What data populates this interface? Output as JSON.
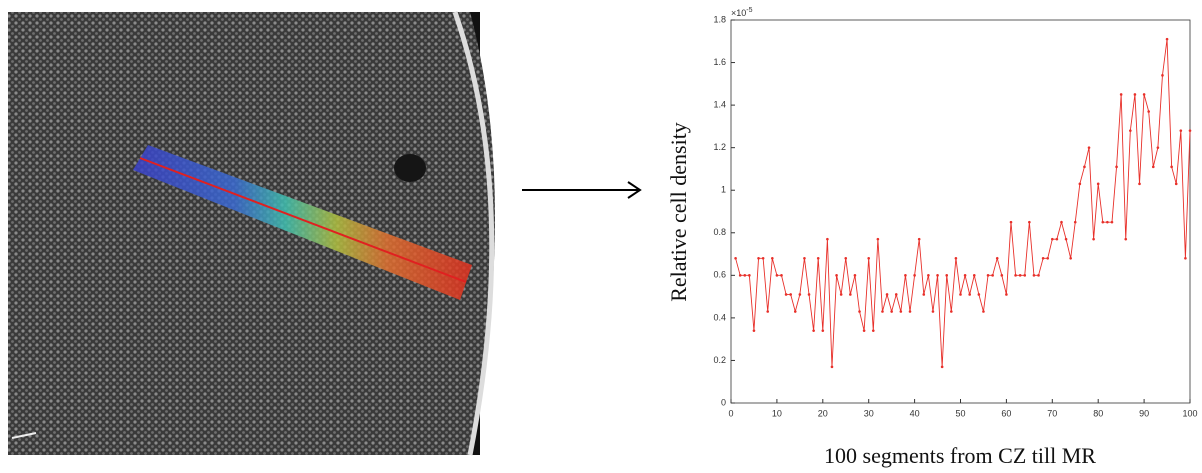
{
  "chart_data": {
    "type": "line",
    "y_label": "Relative cell density",
    "x_label": "100 segments from CZ till MR",
    "multiplier": {
      "base": "×10",
      "exponent": "-5"
    },
    "x": [
      1,
      2,
      3,
      4,
      5,
      6,
      7,
      8,
      9,
      10,
      11,
      12,
      13,
      14,
      15,
      16,
      17,
      18,
      19,
      20,
      21,
      22,
      23,
      24,
      25,
      26,
      27,
      28,
      29,
      30,
      31,
      32,
      33,
      34,
      35,
      36,
      37,
      38,
      39,
      40,
      41,
      42,
      43,
      44,
      45,
      46,
      47,
      48,
      49,
      50,
      51,
      52,
      53,
      54,
      55,
      56,
      57,
      58,
      59,
      60,
      61,
      62,
      63,
      64,
      65,
      66,
      67,
      68,
      69,
      70,
      71,
      72,
      73,
      74,
      75,
      76,
      77,
      78,
      79,
      80,
      81,
      82,
      83,
      84,
      85,
      86,
      87,
      88,
      89,
      90,
      91,
      92,
      93,
      94,
      95,
      96,
      97,
      98,
      99,
      100
    ],
    "series": [
      {
        "color": "#e8302a",
        "values": [
          0.68,
          0.6,
          0.6,
          0.6,
          0.34,
          0.68,
          0.68,
          0.43,
          0.68,
          0.6,
          0.6,
          0.51,
          0.51,
          0.43,
          0.51,
          0.68,
          0.51,
          0.34,
          0.68,
          0.34,
          0.77,
          0.17,
          0.6,
          0.51,
          0.68,
          0.51,
          0.6,
          0.43,
          0.34,
          0.68,
          0.34,
          0.77,
          0.43,
          0.51,
          0.43,
          0.51,
          0.43,
          0.6,
          0.43,
          0.6,
          0.77,
          0.51,
          0.6,
          0.43,
          0.6,
          0.17,
          0.6,
          0.43,
          0.68,
          0.51,
          0.6,
          0.51,
          0.6,
          0.51,
          0.43,
          0.6,
          0.6,
          0.68,
          0.6,
          0.51,
          0.85,
          0.6,
          0.6,
          0.6,
          0.85,
          0.6,
          0.6,
          0.68,
          0.68,
          0.77,
          0.77,
          0.85,
          0.77,
          0.68,
          0.85,
          1.03,
          1.11,
          1.2,
          0.77,
          1.03,
          0.85,
          0.85,
          0.85,
          1.11,
          1.45,
          0.77,
          1.28,
          1.45,
          1.03,
          1.45,
          1.37,
          1.11,
          1.2,
          1.54,
          1.71,
          1.11,
          1.03,
          1.28,
          0.68,
          1.28
        ]
      }
    ],
    "xlim": [
      0,
      100
    ],
    "xticks": [
      0,
      10,
      20,
      30,
      40,
      50,
      60,
      70,
      80,
      90,
      100
    ],
    "ylim": [
      0,
      1.8
    ],
    "yticks": [
      0,
      0.2,
      0.4,
      0.6,
      0.8,
      1,
      1.2,
      1.4,
      1.6,
      1.8
    ]
  }
}
